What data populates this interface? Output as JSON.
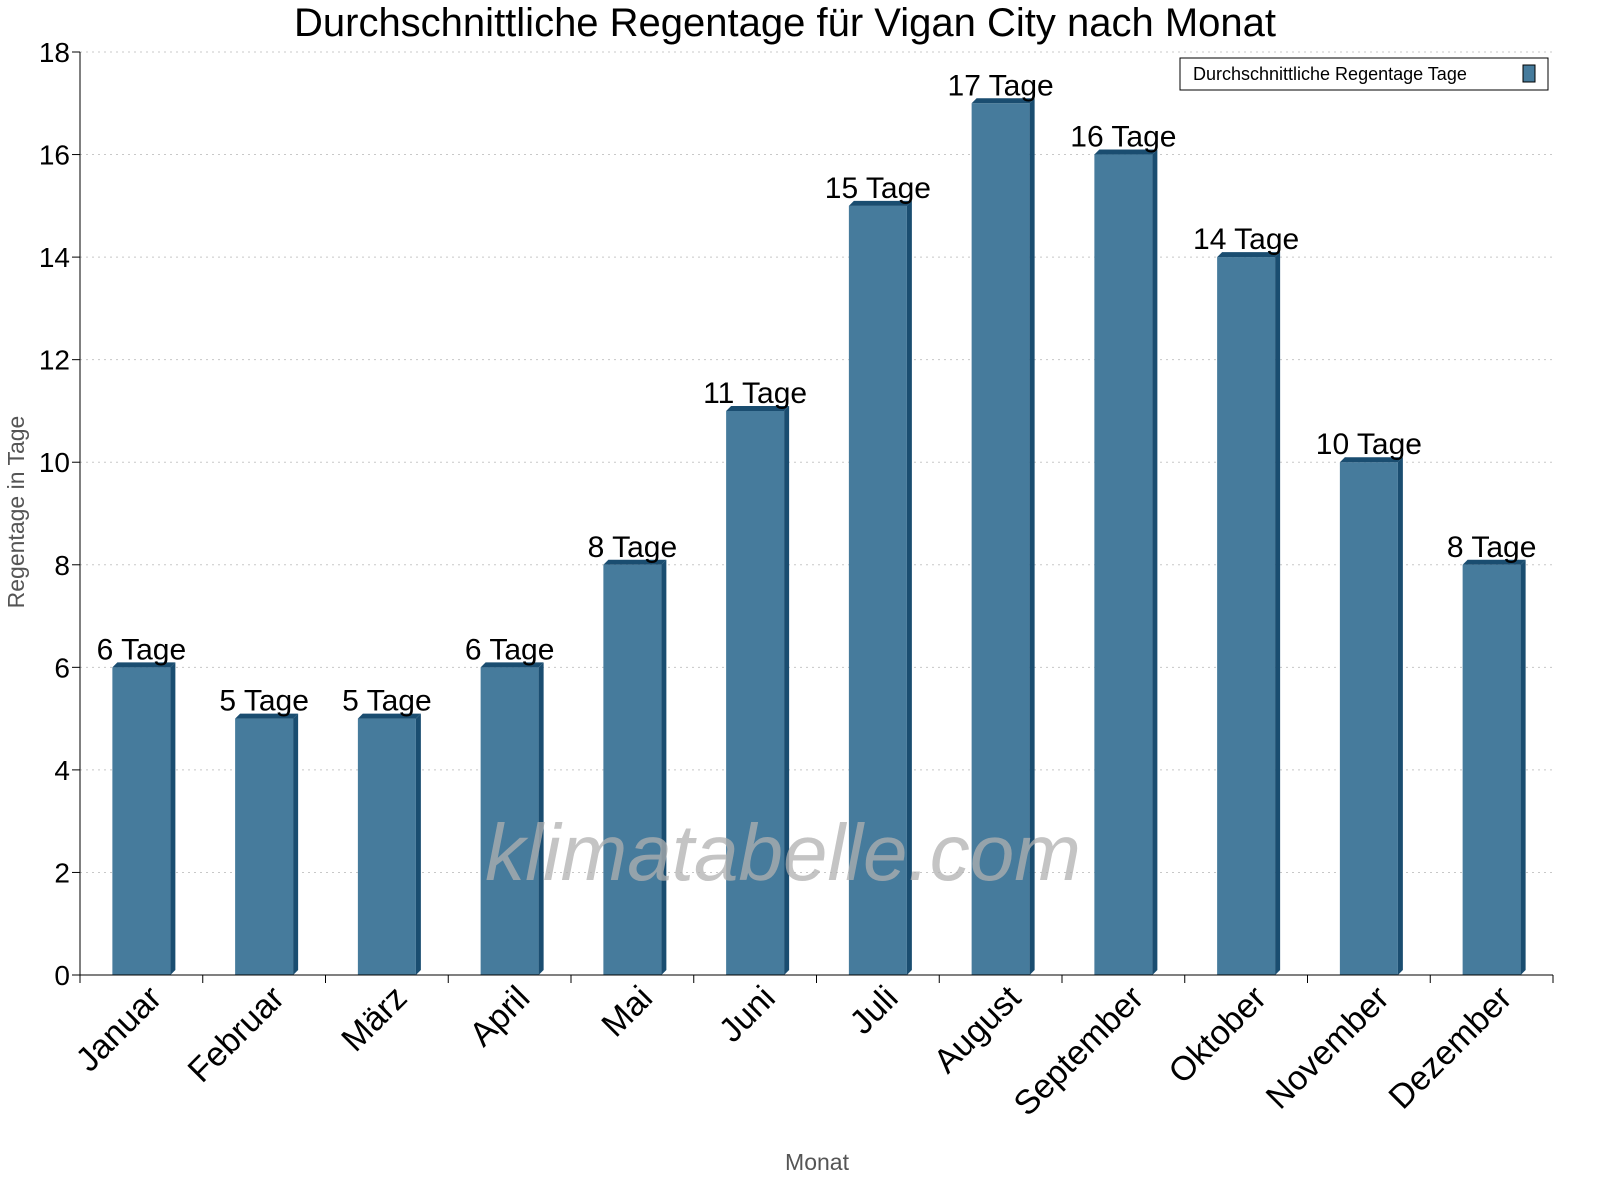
{
  "chart_data": {
    "type": "bar",
    "title": "Durchschnittliche Regentage für Vigan City nach Monat",
    "xlabel": "Monat",
    "ylabel": "Regentage in Tage",
    "categories": [
      "Januar",
      "Februar",
      "März",
      "April",
      "Mai",
      "Juni",
      "Juli",
      "August",
      "September",
      "Oktober",
      "November",
      "Dezember"
    ],
    "series": [
      {
        "name": "Durchschnittliche Regentage Tage",
        "values": [
          6,
          5,
          5,
          6,
          8,
          11,
          15,
          17,
          16,
          14,
          10,
          8
        ]
      }
    ],
    "data_labels": [
      "6 Tage",
      "5 Tage",
      "5 Tage",
      "6 Tage",
      "8 Tage",
      "11 Tage",
      "15 Tage",
      "17 Tage",
      "16 Tage",
      "14 Tage",
      "10 Tage",
      "8 Tage"
    ],
    "ylim": [
      0,
      18
    ],
    "yticks": [
      0,
      2,
      4,
      6,
      8,
      10,
      12,
      14,
      16,
      18
    ],
    "grid": true,
    "legend_position": "top-right",
    "colors": {
      "bar_face": "#467b9c",
      "bar_side": "#1a4d70"
    },
    "watermark": "klimatabelle.com"
  }
}
